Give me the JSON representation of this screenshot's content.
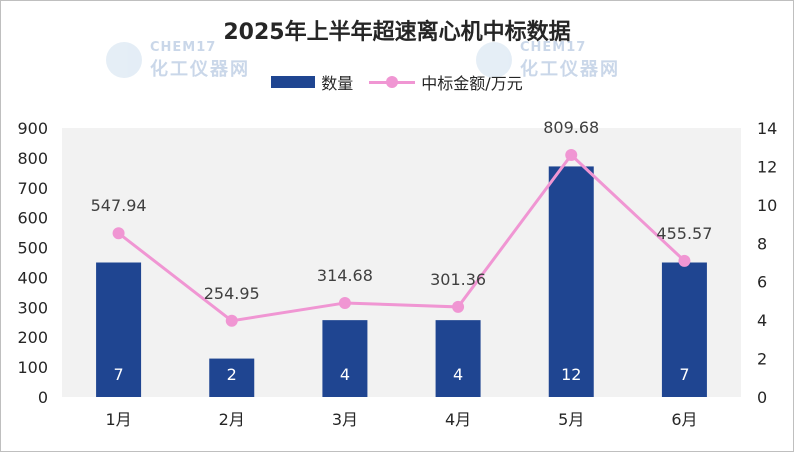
{
  "watermark": {
    "brand": "CHEM17",
    "name": "化工仪器网"
  },
  "chart_data": {
    "type": "bar",
    "title": "2025年上半年超速离心机中标数据",
    "categories": [
      "1月",
      "2月",
      "3月",
      "4月",
      "5月",
      "6月"
    ],
    "bar_series": {
      "name": "数量",
      "values": [
        7,
        2,
        4,
        4,
        12,
        7
      ],
      "color": "#1f4591"
    },
    "line_series": {
      "name": "中标金额/万元",
      "values": [
        547.94,
        254.95,
        314.68,
        301.36,
        809.68,
        455.57
      ],
      "color": "#f096d3"
    },
    "y_left": {
      "min": 0,
      "max": 900,
      "step": 100
    },
    "y_right": {
      "min": 0,
      "max": 14,
      "step": 2
    },
    "grid": false,
    "legend_position": "top-center",
    "plot_background": "#f2f2f2"
  }
}
